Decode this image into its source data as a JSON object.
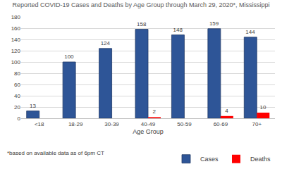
{
  "chart_data": {
    "type": "bar",
    "title": "Reported COVID-19 Cases and Deaths by Age Group through March 29, 2020*, Mississippi",
    "x_label": "Age Group",
    "categories": [
      "<18",
      "18-29",
      "30-39",
      "40-49",
      "50-59",
      "60-69",
      "70+"
    ],
    "series": [
      {
        "name": "Cases",
        "color": "#2e5597",
        "values": [
          13,
          100,
          124,
          158,
          148,
          159,
          144
        ]
      },
      {
        "name": "Deaths",
        "color": "#ff0000",
        "values": [
          null,
          null,
          null,
          2,
          null,
          4,
          10
        ]
      }
    ],
    "ylim": [
      0,
      180
    ],
    "yticks": [
      0,
      20,
      40,
      60,
      80,
      100,
      120,
      140,
      160,
      180
    ],
    "grid": true,
    "legend": "bottom",
    "data_labels": true,
    "annotations": [
      "*based on available data as of 6pm CT"
    ]
  }
}
